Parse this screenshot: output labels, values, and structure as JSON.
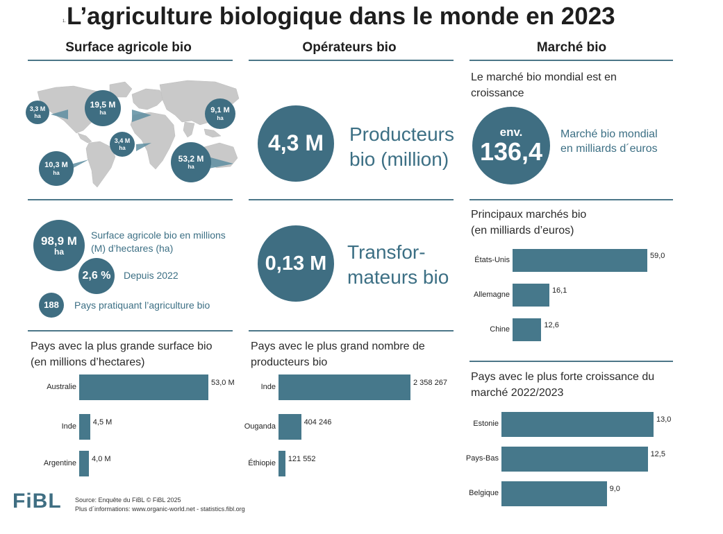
{
  "title": "L’agriculture biologique dans le monde en 2023",
  "title_mark": "1.",
  "columns": {
    "surface": "Surface agricole bio",
    "operators": "Opérateurs bio",
    "market": "Marché bio"
  },
  "map_regions": [
    {
      "value": "3,3 M",
      "unit": "ha"
    },
    {
      "value": "19,5 M",
      "unit": "ha"
    },
    {
      "value": "9,1 M",
      "unit": "ha"
    },
    {
      "value": "3,4 M",
      "unit": "ha"
    },
    {
      "value": "10,3 M",
      "unit": "ha"
    },
    {
      "value": "53,2 M",
      "unit": "ha"
    }
  ],
  "surface_stats": {
    "area_value": "98,9 M",
    "area_unit": "ha",
    "area_label": "Surface agricole bio en millions (M) d’hectares (ha)",
    "growth_value": "2,6 %",
    "growth_label": "Depuis 2022",
    "countries_value": "188",
    "countries_label": "Pays pratiquant l’agriculture bio"
  },
  "operators": {
    "producers_value": "4,3 M",
    "producers_label_1": "Producteurs",
    "producers_label_2": "bio (million)",
    "processors_value": "0,13 M",
    "processors_label_1": "Transfor-",
    "processors_label_2": "mateurs bio"
  },
  "market": {
    "intro_1": "Le marché bio mondial est en",
    "intro_2": "croissance",
    "circle_prefix": "env.",
    "circle_value": "136,4",
    "label_1": "Marché bio mondial",
    "label_2": "en milliards d´euros"
  },
  "chart_data": [
    {
      "type": "bar",
      "orientation": "horizontal",
      "title": "Pays avec la plus grande surface bio",
      "subtitle": "(en millions d’hectares)",
      "categories": [
        "Australie",
        "Inde",
        "Argentine"
      ],
      "values": [
        53.0,
        4.5,
        4.0
      ],
      "value_labels": [
        "53,0 M",
        "4,5 M",
        "4,0 M"
      ]
    },
    {
      "type": "bar",
      "orientation": "horizontal",
      "title": "Pays avec le plus grand nombre de",
      "subtitle": "producteurs bio",
      "categories": [
        "Inde",
        "Ouganda",
        "Éthiopie"
      ],
      "values": [
        2358267,
        404246,
        121552
      ],
      "value_labels": [
        "2 358 267",
        "404 246",
        "121 552"
      ]
    },
    {
      "type": "bar",
      "orientation": "horizontal",
      "title": "Principaux marchés bio",
      "subtitle": "(en milliards d’euros)",
      "categories": [
        "États-Unis",
        "Allemagne",
        "Chine"
      ],
      "values": [
        59.0,
        16.1,
        12.6
      ],
      "value_labels": [
        "59,0",
        "16,1",
        "12,6"
      ]
    },
    {
      "type": "bar",
      "orientation": "horizontal",
      "title": "Pays avec le plus forte croissance du",
      "subtitle": "marché 2022/2023",
      "categories": [
        "Estonie",
        "Pays-Bas",
        "Belgique"
      ],
      "values": [
        13.0,
        12.5,
        9.0
      ],
      "value_labels": [
        "13,0",
        "12,5",
        "9,0"
      ]
    }
  ],
  "footer": {
    "logo": "FiBL",
    "source": "Source: Enquête du FiBL © FiBL 2025",
    "info": "Plus d´informations: www.organic-world.net - statistics.fibl.org"
  },
  "colors": {
    "accent": "#3f6e82",
    "bar": "#46788b",
    "rule": "#4b7688",
    "text_teal": "#3c6f84"
  }
}
